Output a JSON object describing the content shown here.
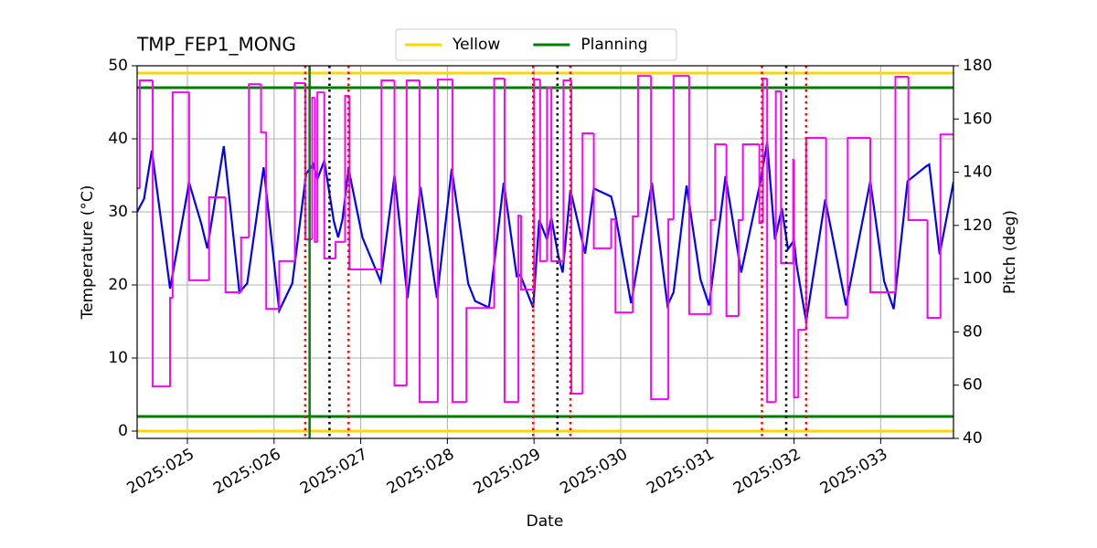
{
  "chart_data": {
    "type": "line",
    "title": "TMP_FEP1_MONG",
    "x_label": "Date",
    "y_label": "Temperature (°C)",
    "y2_label": "Pitch (deg)",
    "xlim": [
      24.42,
      33.84
    ],
    "ylim": [
      -1,
      50
    ],
    "y2lim": [
      40,
      180
    ],
    "xticks": [
      {
        "value": 25,
        "label": "2025:025"
      },
      {
        "value": 26,
        "label": "2025:026"
      },
      {
        "value": 27,
        "label": "2025:027"
      },
      {
        "value": 28,
        "label": "2025:028"
      },
      {
        "value": 29,
        "label": "2025:029"
      },
      {
        "value": 30,
        "label": "2025:030"
      },
      {
        "value": 31,
        "label": "2025:031"
      },
      {
        "value": 32,
        "label": "2025:032"
      },
      {
        "value": 33,
        "label": "2025:033"
      }
    ],
    "yticks": [
      0,
      10,
      20,
      30,
      40,
      50
    ],
    "y2ticks": [
      40,
      60,
      80,
      100,
      120,
      140,
      160,
      180
    ],
    "grid": true,
    "legend": "upper center",
    "y2_color": "#ff00ff",
    "series": [
      {
        "color": "#0000ff",
        "x": [
          24.42,
          24.5,
          24.59,
          24.8,
          25.02,
          25.16,
          25.23,
          25.42,
          25.6,
          25.69,
          25.88,
          26.06,
          26.21,
          26.37,
          26.45,
          26.5,
          26.58,
          26.69,
          26.74,
          26.79,
          26.86,
          27.02,
          27.23,
          27.39,
          27.54,
          27.69,
          27.88,
          28.05,
          28.24,
          28.32,
          28.48,
          28.65,
          28.8,
          28.84,
          28.99,
          29.06,
          29.15,
          29.2,
          29.28,
          29.33,
          29.42,
          29.59,
          29.69,
          29.89,
          29.93,
          30.12,
          30.36,
          30.54,
          30.61,
          30.76,
          30.92,
          31.02,
          31.21,
          31.39,
          31.61,
          31.69,
          31.78,
          31.86,
          31.93,
          32.0,
          32.03,
          32.14,
          32.36,
          32.6,
          32.88,
          33.04,
          33.15,
          33.31,
          33.52,
          33.56,
          33.68,
          33.84
        ],
        "values": [
          30,
          31.8,
          38.4,
          19.5,
          34,
          28.4,
          25,
          39,
          19,
          20.2,
          36.1,
          16.5,
          20.2,
          35.2,
          36.5,
          34.5,
          37,
          28.7,
          26.5,
          29,
          35.9,
          26.5,
          20.5,
          35,
          18.2,
          33.4,
          18.2,
          35.9,
          20.2,
          17.8,
          16.9,
          34,
          21.2,
          21.4,
          16.9,
          28.9,
          26.2,
          29.2,
          24,
          21.7,
          33,
          24.3,
          33.2,
          32.1,
          30.2,
          17.5,
          34,
          17.2,
          19,
          33.6,
          20.8,
          17.2,
          34.9,
          21.7,
          34,
          39.5,
          26.2,
          30.5,
          24.9,
          26.1,
          22.7,
          15,
          31.7,
          17.2,
          34.2,
          20.5,
          16.7,
          34.2,
          36.2,
          36.5,
          24.2,
          34.1
        ]
      },
      {
        "color": "#ff00ff",
        "axis": "y2",
        "step": true,
        "x": [
          24.42,
          24.45,
          24.6,
          24.8,
          24.83,
          25.02,
          25.25,
          25.44,
          25.62,
          25.71,
          25.85,
          25.91,
          26.06,
          26.24,
          26.36,
          26.44,
          26.47,
          26.5,
          26.58,
          26.71,
          26.82,
          26.87,
          27.24,
          27.39,
          27.53,
          27.68,
          27.89,
          28.06,
          28.22,
          28.54,
          28.66,
          28.82,
          28.85,
          29.0,
          29.07,
          29.15,
          29.2,
          29.34,
          29.43,
          29.56,
          29.69,
          29.89,
          29.94,
          30.14,
          30.2,
          30.35,
          30.55,
          30.61,
          30.79,
          31.04,
          31.09,
          31.22,
          31.36,
          31.41,
          31.6,
          31.64,
          31.69,
          31.79,
          31.85,
          31.99,
          32.0,
          32.05,
          32.14,
          32.37,
          32.62,
          32.88,
          33.17,
          33.32,
          33.54,
          33.69
        ],
        "values": [
          134,
          174.5,
          59.5,
          92.8,
          170,
          99.4,
          130.6,
          94.9,
          115.5,
          173.1,
          155,
          88.7,
          106.6,
          173.5,
          114.8,
          168,
          113.8,
          170,
          107.6,
          113.8,
          168.7,
          103.5,
          174.5,
          59.9,
          174.5,
          53.7,
          174.8,
          53.7,
          89,
          175.2,
          53.7,
          123.7,
          95.9,
          174.8,
          106.6,
          171.8,
          106.6,
          174.5,
          56.8,
          154.6,
          111.4,
          122.3,
          87.3,
          123.4,
          176.2,
          54.7,
          122.3,
          176.2,
          86.7,
          122,
          150.5,
          86,
          122,
          150.5,
          121,
          175.2,
          53.7,
          170.4,
          105.9,
          144.7,
          55.4,
          80.8,
          152.9,
          85.4,
          152.9,
          94.9,
          175.9,
          122,
          85.3,
          154.2
        ]
      }
    ],
    "hlines": [
      {
        "name": "Yellow",
        "color": "#ffd700",
        "values": [
          0,
          49
        ]
      },
      {
        "name": "Planning",
        "color": "#008000",
        "values": [
          2,
          47
        ]
      }
    ],
    "vlines": [
      {
        "color": "#ff0000",
        "style": "dotted",
        "x": [
          26.36,
          26.86,
          28.99,
          29.42,
          31.63,
          32.14
        ]
      },
      {
        "color": "#000000",
        "style": "dotted",
        "x": [
          26.64,
          29.27,
          31.91
        ]
      },
      {
        "color": "#008000",
        "style": "solid",
        "x": [
          26.41
        ]
      }
    ]
  }
}
